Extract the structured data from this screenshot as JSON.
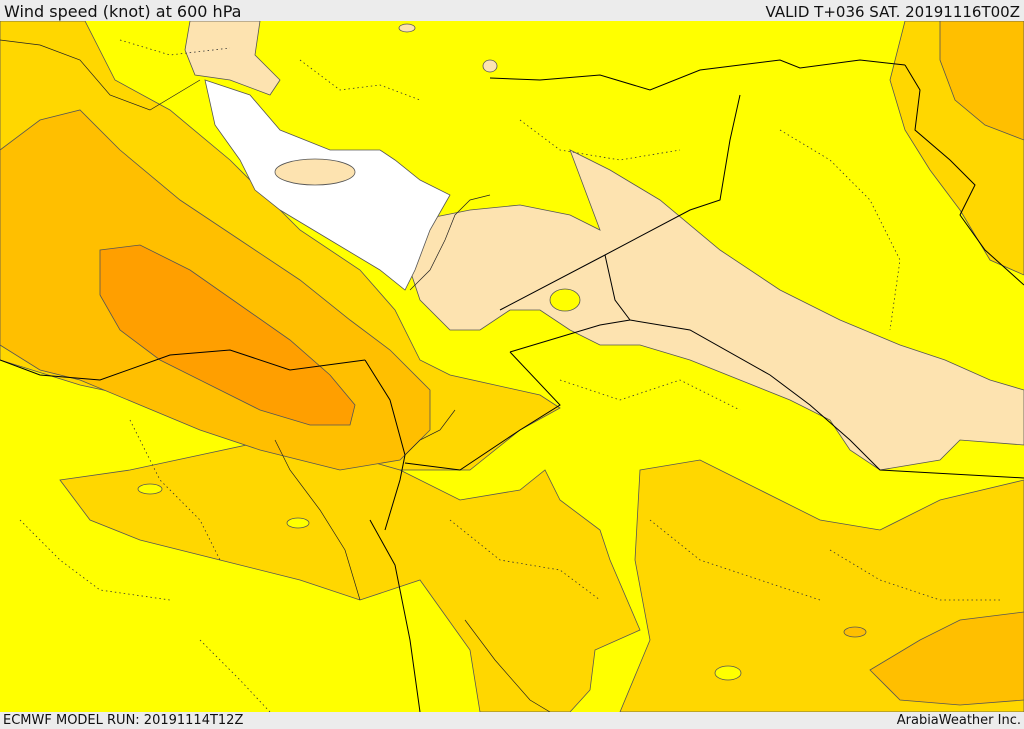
{
  "header": {
    "title": "Wind speed (knot) at 600 hPa",
    "valid": "VALID T+036 SAT. 20191116T00Z"
  },
  "footer": {
    "model_run": "ECMWF MODEL RUN: 20191114T12Z",
    "credit": "ArabiaWeather Inc."
  },
  "map": {
    "field": "wind speed at 600 hPa",
    "palette": {
      "calm": "#ffffff",
      "light": "#fde3b0",
      "moderate": "#ffff00",
      "fresh": "#ffd700",
      "strong": "#ffbf00",
      "very_strong": "#ff9f00",
      "contour_line": "#555555",
      "border_line": "#000000"
    }
  }
}
